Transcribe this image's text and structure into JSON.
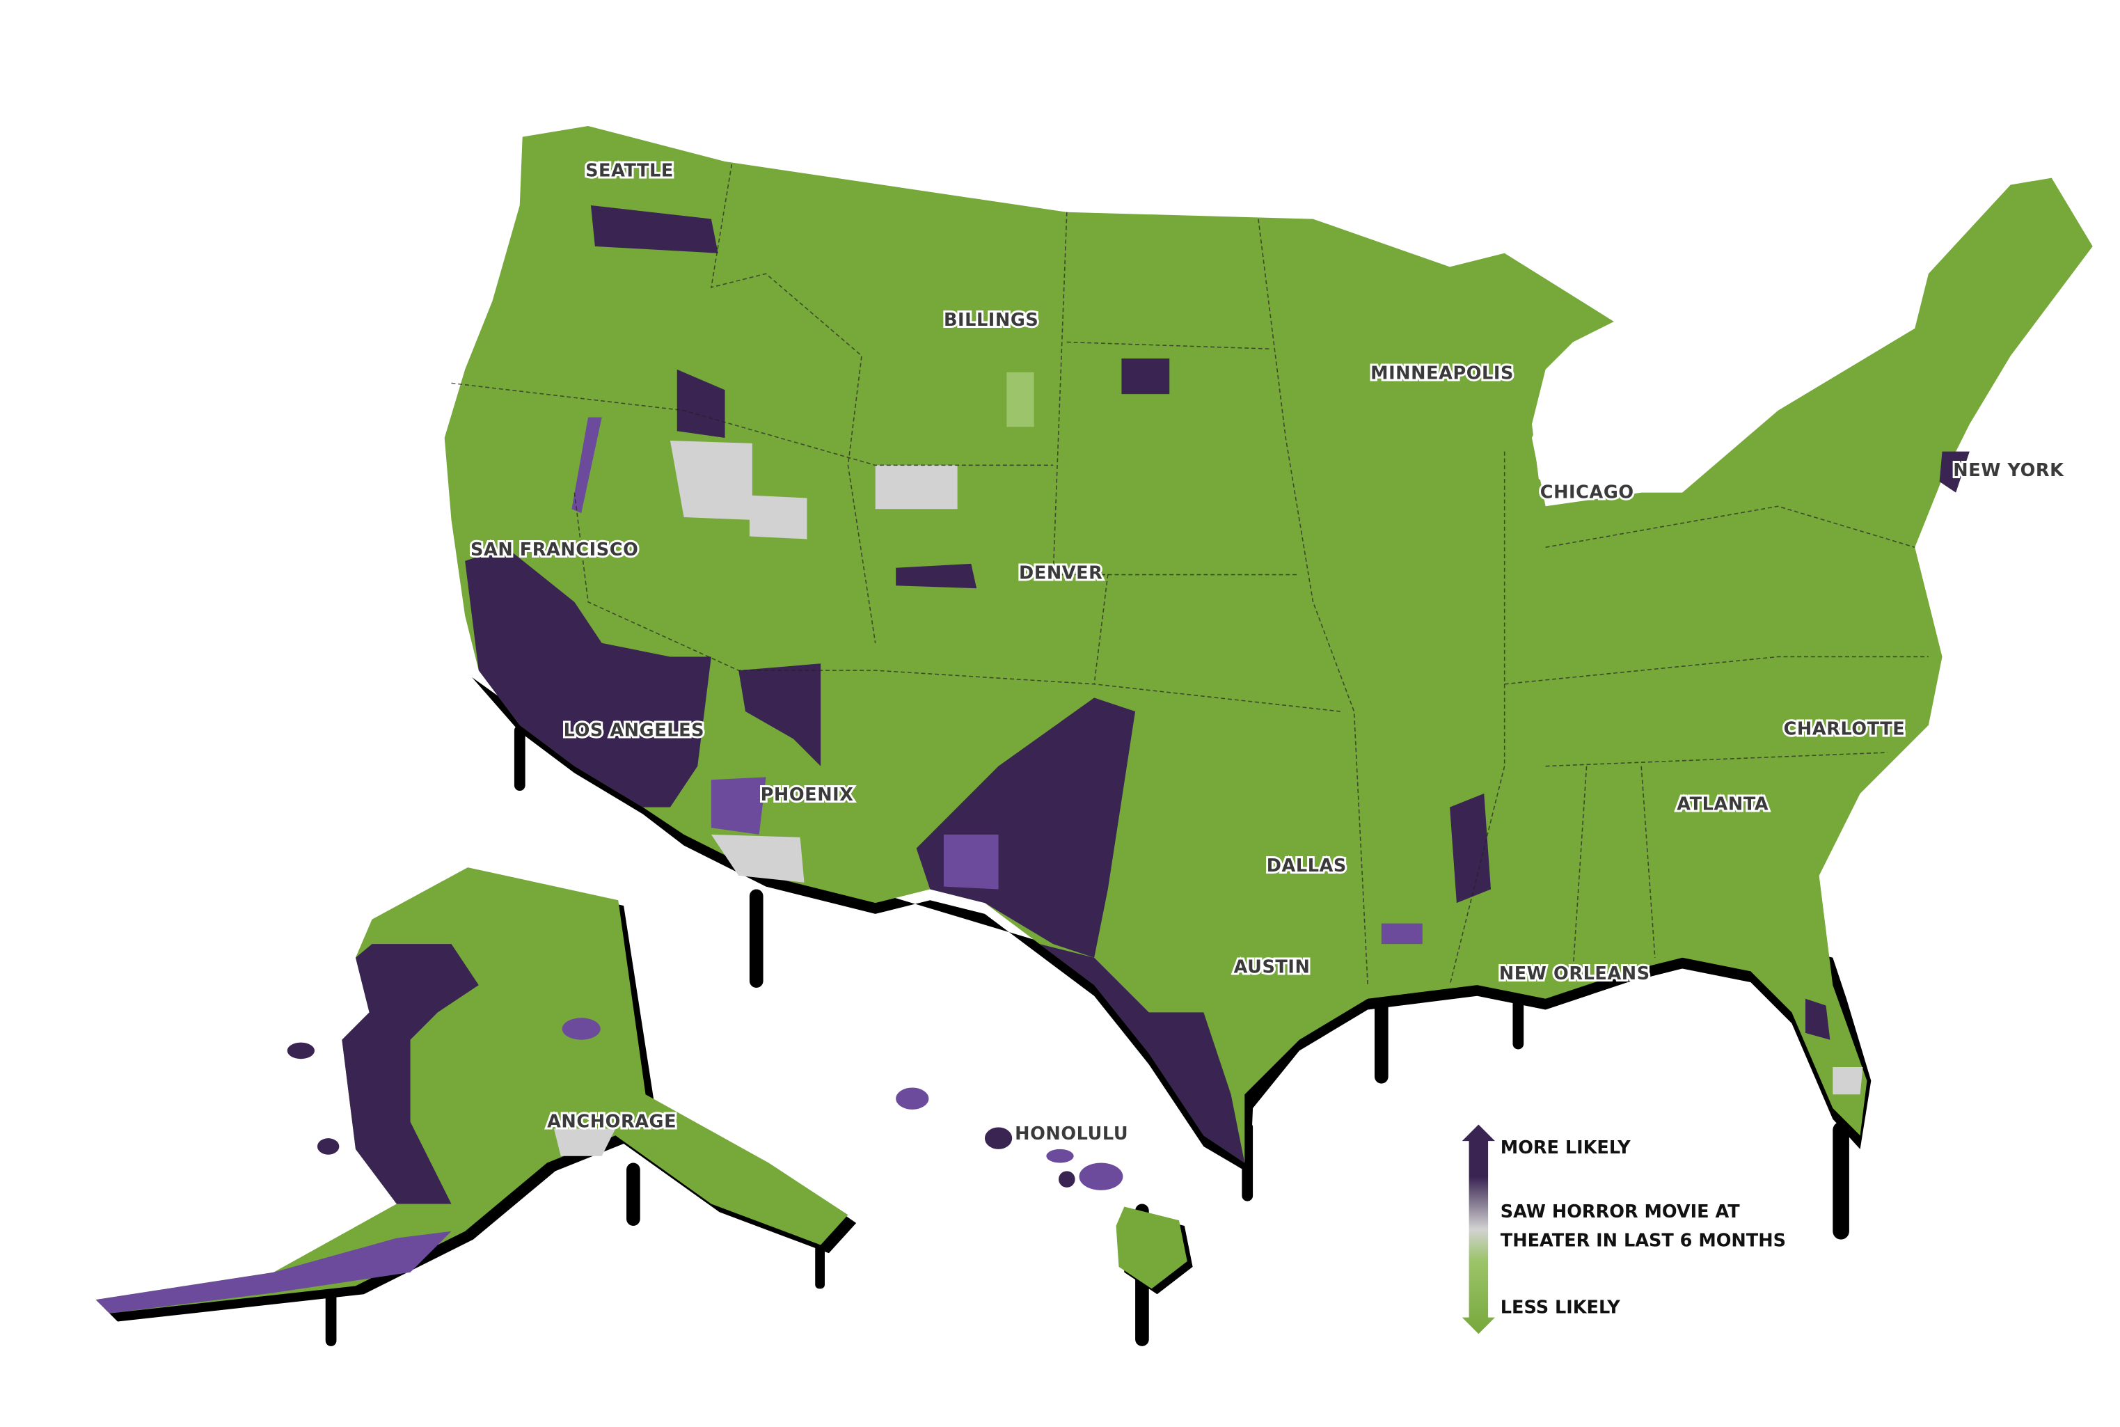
{
  "colors": {
    "more_likely": "#3a2452",
    "mid_purple": "#6c4a9c",
    "neutral": "#d2d2d2",
    "light_green": "#9cc46a",
    "less_likely": "#76a83a",
    "drip_shadow": "#000000"
  },
  "cities": [
    {
      "name": "SEATTLE"
    },
    {
      "name": "BILLINGS"
    },
    {
      "name": "MINNEAPOLIS"
    },
    {
      "name": "CHICAGO"
    },
    {
      "name": "NEW YORK"
    },
    {
      "name": "SAN FRANCISCO"
    },
    {
      "name": "DENVER"
    },
    {
      "name": "LOS ANGELES"
    },
    {
      "name": "PHOENIX"
    },
    {
      "name": "DALLAS"
    },
    {
      "name": "AUSTIN"
    },
    {
      "name": "NEW ORLEANS"
    },
    {
      "name": "CHARLOTTE"
    },
    {
      "name": "ATLANTA"
    },
    {
      "name": "ANCHORAGE"
    },
    {
      "name": "HONOLULU"
    }
  ],
  "legend": {
    "top_label": "MORE LIKELY",
    "title_line1": "SAW HORROR MOVIE AT",
    "title_line2": "THEATER IN LAST 6 MONTHS",
    "bottom_label": "LESS LIKELY"
  }
}
